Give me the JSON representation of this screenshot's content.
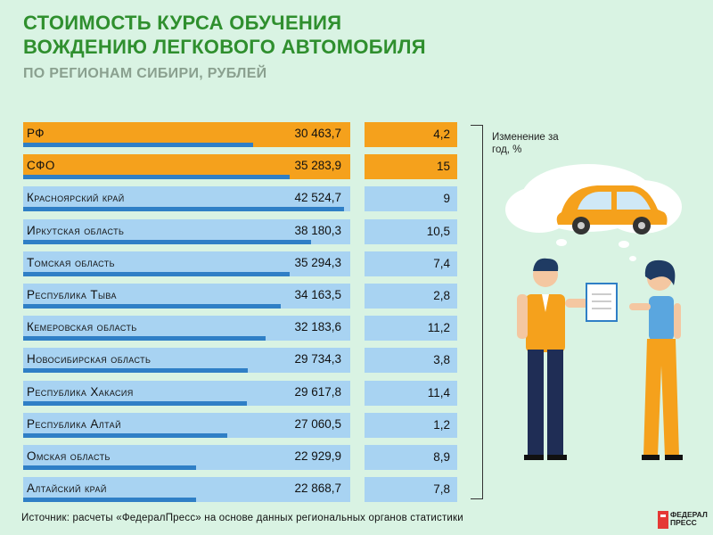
{
  "header": {
    "title_line1": "СТОИМОСТЬ КУРСА ОБУЧЕНИЯ",
    "title_line2": "ВОЖДЕНИЮ ЛЕГКОВОГО АВТОМОБИЛЯ",
    "subtitle": "ПО РЕГИОНАМ СИБИРИ, РУБЛЕЙ"
  },
  "legend": {
    "change_label": "Изменение за год, %"
  },
  "footer": {
    "source": "Источник: расчеты «ФедералПресс» на основе данных региональных органов статистики",
    "logo_line1": "ФЕДЕРАЛ",
    "logo_line2": "ПРЕСС"
  },
  "colors": {
    "highlight": "#f5a11c",
    "bar": "#a8d3f2",
    "fill": "#2f7fc6",
    "title": "#2f8f2e"
  },
  "chart_data": {
    "type": "bar",
    "categories": [
      "РФ",
      "СФО",
      "Красноярский край",
      "Иркутская область",
      "Томская область",
      "Республика Тыва",
      "Кемеровская область",
      "Новосибирская область",
      "Республика Хакасия",
      "Республика Алтай",
      "Омская область",
      "Алтайский край"
    ],
    "values": [
      30463.7,
      35283.9,
      42524.7,
      38180.3,
      35294.3,
      34163.5,
      32183.6,
      29734.3,
      29617.8,
      27060.5,
      22929.9,
      22868.7
    ],
    "value_labels": [
      "30 463,7",
      "35 283,9",
      "42 524,7",
      "38 180,3",
      "35 294,3",
      "34 163,5",
      "32 183,6",
      "29 734,3",
      "29 617,8",
      "27 060,5",
      "22 929,9",
      "22 868,7"
    ],
    "change": [
      4.2,
      15,
      9,
      10.5,
      7.4,
      2.8,
      11.2,
      3.8,
      11.4,
      1.2,
      8.9,
      7.8
    ],
    "change_labels": [
      "4,2",
      "15",
      "9",
      "10,5",
      "7,4",
      "2,8",
      "11,2",
      "3,8",
      "11,4",
      "1,2",
      "8,9",
      "7,8"
    ],
    "highlighted": [
      "РФ",
      "СФО"
    ],
    "xlim": [
      0,
      42524.7
    ],
    "title": "СТОИМОСТЬ КУРСА ОБУЧЕНИЯ ВОЖДЕНИЮ ЛЕГКОВОГО АВТОМОБИЛЯ",
    "subtitle": "ПО РЕГИОНАМ СИБИРИ, РУБЛЕЙ"
  }
}
